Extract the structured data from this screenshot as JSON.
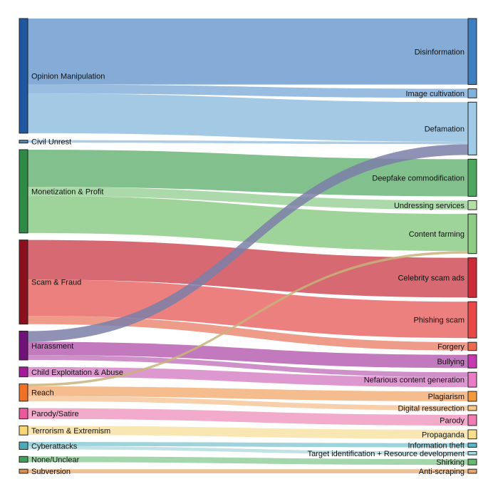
{
  "chart_data": {
    "type": "sankey",
    "title": "",
    "sources": [
      {
        "name": "Opinion Manipulation",
        "color": "#1f58a0"
      },
      {
        "name": "Civil Unrest",
        "color": "#4b86bf"
      },
      {
        "name": "Monetization & Profit",
        "color": "#2e8b45"
      },
      {
        "name": "Scam & Fraud",
        "color": "#8c0f1e"
      },
      {
        "name": "Harassment",
        "color": "#73117a"
      },
      {
        "name": "Child Exploitation & Abuse",
        "color": "#a6189a"
      },
      {
        "name": "Reach",
        "color": "#ee7124"
      },
      {
        "name": "Parody/Satire",
        "color": "#ea5a9a"
      },
      {
        "name": "Terrorism & Extremism",
        "color": "#f5d776"
      },
      {
        "name": "Cyberattacks",
        "color": "#4aaab8"
      },
      {
        "name": "None/Unclear",
        "color": "#3ea159"
      },
      {
        "name": "Subversion",
        "color": "#d98e4e"
      }
    ],
    "targets": [
      {
        "name": "Disinformation",
        "color": "#3f7ec1"
      },
      {
        "name": "Image cultivation",
        "color": "#7fb3dc"
      },
      {
        "name": "Defamation",
        "color": "#9fcbe7"
      },
      {
        "name": "Deepfake commodification",
        "color": "#4fa65e"
      },
      {
        "name": "Undressing services",
        "color": "#b5dfa6"
      },
      {
        "name": "Content farming",
        "color": "#8dcc84"
      },
      {
        "name": "Celebrity scam ads",
        "color": "#cd2b37"
      },
      {
        "name": "Phishing scam",
        "color": "#e84848"
      },
      {
        "name": "Forgery",
        "color": "#ec6a50"
      },
      {
        "name": "Bullying",
        "color": "#c73ab0"
      },
      {
        "name": "Nefarious content generation",
        "color": "#ec7bc5"
      },
      {
        "name": "Plagiarism",
        "color": "#f39a3b"
      },
      {
        "name": "Digital ressurection",
        "color": "#f8c88c"
      },
      {
        "name": "Parody",
        "color": "#f07cb2"
      },
      {
        "name": "Propaganda",
        "color": "#f8df8e"
      },
      {
        "name": "Information theft",
        "color": "#5cb9c7"
      },
      {
        "name": "Target identification + Resource development",
        "color": "#a6dbe3"
      },
      {
        "name": "Shirking",
        "color": "#63b96c"
      },
      {
        "name": "Anti-scraping",
        "color": "#e6a66e"
      }
    ],
    "links": [
      {
        "source": "Opinion Manipulation",
        "target": "Disinformation",
        "value": 80,
        "color": "#6f9ecf"
      },
      {
        "source": "Opinion Manipulation",
        "target": "Image cultivation",
        "value": 11,
        "color": "#86b2db"
      },
      {
        "source": "Opinion Manipulation",
        "target": "Defamation",
        "value": 48,
        "color": "#94bfe1"
      },
      {
        "source": "Civil Unrest",
        "target": "Defamation",
        "value": 3,
        "color": "#9cc4e3"
      },
      {
        "source": "Monetization & Profit",
        "target": "Deepfake commodification",
        "value": 45,
        "color": "#6cb67a"
      },
      {
        "source": "Monetization & Profit",
        "target": "Undressing services",
        "value": 11,
        "color": "#9ed29a"
      },
      {
        "source": "Monetization & Profit",
        "target": "Content farming",
        "value": 45,
        "color": "#8dcc88"
      },
      {
        "source": "Scam & Fraud",
        "target": "Celebrity scam ads",
        "value": 48,
        "color": "#cf4f58"
      },
      {
        "source": "Scam & Fraud",
        "target": "Phishing scam",
        "value": 44,
        "color": "#e86a67"
      },
      {
        "source": "Scam & Fraud",
        "target": "Forgery",
        "value": 10,
        "color": "#ec8a75"
      },
      {
        "source": "Harassment",
        "target": "Defamation",
        "value": 13,
        "color": "#7c7fa8"
      },
      {
        "source": "Harassment",
        "target": "Bullying",
        "value": 16,
        "color": "#b761b1"
      },
      {
        "source": "Harassment",
        "target": "Nefarious content generation",
        "value": 6,
        "color": "#c77bc0"
      },
      {
        "source": "Child Exploitation & Abuse",
        "target": "Nefarious content generation",
        "value": 12,
        "color": "#d886c8"
      },
      {
        "source": "Reach",
        "target": "Content farming",
        "value": 3,
        "color": "#c8b37a"
      },
      {
        "source": "Reach",
        "target": "Plagiarism",
        "value": 12,
        "color": "#f3b07a"
      },
      {
        "source": "Reach",
        "target": "Digital ressurection",
        "value": 6,
        "color": "#f6c89c"
      },
      {
        "source": "Parody/Satire",
        "target": "Parody",
        "value": 13,
        "color": "#f09cc2"
      },
      {
        "source": "Terrorism & Extremism",
        "target": "Propaganda",
        "value": 11,
        "color": "#f8e3a6"
      },
      {
        "source": "Cyberattacks",
        "target": "Information theft",
        "value": 5,
        "color": "#8ccbd4"
      },
      {
        "source": "Cyberattacks",
        "target": "Target identification + Resource development",
        "value": 4,
        "color": "#b4dde3"
      },
      {
        "source": "None/Unclear",
        "target": "Shirking",
        "value": 7,
        "color": "#93cf9b"
      },
      {
        "source": "Subversion",
        "target": "Anti-scraping",
        "value": 5,
        "color": "#ebb584"
      }
    ],
    "xlabel": "",
    "ylabel": ""
  }
}
